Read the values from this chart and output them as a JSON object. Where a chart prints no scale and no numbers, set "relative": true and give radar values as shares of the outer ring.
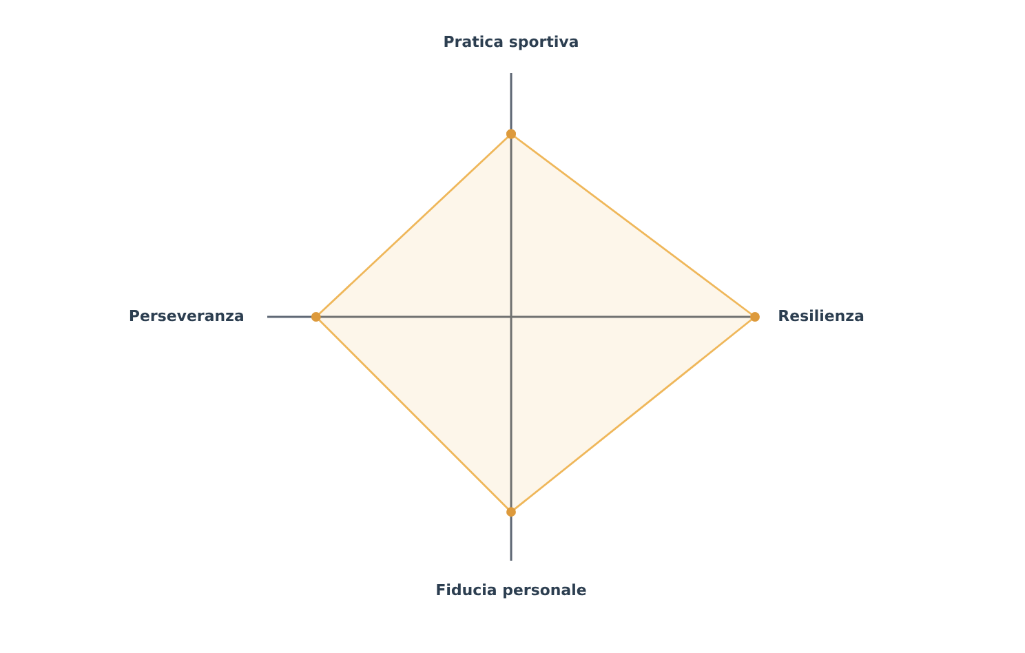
{
  "chart_data": {
    "type": "radar",
    "categories": [
      "Pratica sportiva",
      "Resilienza",
      "Fiducia personale",
      "Perseveranza"
    ],
    "relative": true,
    "marker": "circle",
    "series": [
      {
        "color": "#efb75a",
        "values": [
          0.75,
          1,
          0.8,
          0.8
        ]
      }
    ]
  }
}
